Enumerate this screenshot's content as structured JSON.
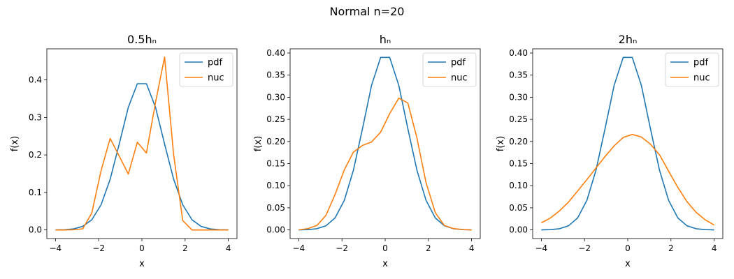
{
  "figure": {
    "title": "Normal n=20"
  },
  "chart_data": [
    {
      "type": "line",
      "title": "0.5hₙ",
      "xlabel": "x",
      "ylabel": "f(x)",
      "xlim": [
        -4.4,
        4.4
      ],
      "ylim": [
        -0.023,
        0.483
      ],
      "xticks": [
        -4,
        -2,
        0,
        2,
        4
      ],
      "yticks": [
        0.0,
        0.1,
        0.2,
        0.3,
        0.4
      ],
      "ytick_labels": [
        "0.0",
        "0.1",
        "0.2",
        "0.3",
        "0.4"
      ],
      "legend_position": "upper right",
      "x": [
        -4.0,
        -3.58,
        -3.16,
        -2.74,
        -2.32,
        -1.89,
        -1.47,
        -1.05,
        -0.63,
        -0.21,
        0.21,
        0.63,
        1.05,
        1.47,
        1.89,
        2.32,
        2.74,
        3.16,
        3.58,
        4.0
      ],
      "series": [
        {
          "name": "pdf",
          "color": "#1f77b4",
          "values": [
            0.0001,
            0.0007,
            0.0027,
            0.0094,
            0.027,
            0.067,
            0.135,
            0.229,
            0.327,
            0.39,
            0.39,
            0.327,
            0.229,
            0.135,
            0.067,
            0.027,
            0.0094,
            0.0027,
            0.0007,
            0.0001
          ]
        },
        {
          "name": "nuc",
          "color": "#ff7f0e",
          "values": [
            0.0,
            0.0,
            0.0005,
            0.003,
            0.045,
            0.158,
            0.244,
            0.197,
            0.149,
            0.234,
            0.205,
            0.34,
            0.461,
            0.2,
            0.025,
            0.0,
            0.0,
            0.0,
            0.0,
            0.0
          ]
        }
      ]
    },
    {
      "type": "line",
      "title": "hₙ",
      "xlabel": "x",
      "ylabel": "f(x)",
      "xlim": [
        -4.4,
        4.4
      ],
      "ylim": [
        -0.0195,
        0.4095
      ],
      "xticks": [
        -4,
        -2,
        0,
        2,
        4
      ],
      "yticks": [
        0.0,
        0.05,
        0.1,
        0.15,
        0.2,
        0.25,
        0.3,
        0.35,
        0.4
      ],
      "ytick_labels": [
        "0.00",
        "0.05",
        "0.10",
        "0.15",
        "0.20",
        "0.25",
        "0.30",
        "0.35",
        "0.40"
      ],
      "legend_position": "upper right",
      "x": [
        -4.0,
        -3.58,
        -3.16,
        -2.74,
        -2.32,
        -1.89,
        -1.47,
        -1.05,
        -0.63,
        -0.21,
        0.21,
        0.63,
        1.05,
        1.47,
        1.89,
        2.32,
        2.74,
        3.16,
        3.58,
        4.0
      ],
      "series": [
        {
          "name": "pdf",
          "color": "#1f77b4",
          "values": [
            0.0001,
            0.0007,
            0.0027,
            0.0094,
            0.027,
            0.067,
            0.135,
            0.229,
            0.327,
            0.39,
            0.39,
            0.327,
            0.229,
            0.135,
            0.067,
            0.027,
            0.0094,
            0.0027,
            0.0007,
            0.0001
          ]
        },
        {
          "name": "nuc",
          "color": "#ff7f0e",
          "values": [
            0.0,
            0.003,
            0.01,
            0.033,
            0.08,
            0.136,
            0.176,
            0.191,
            0.199,
            0.221,
            0.263,
            0.298,
            0.287,
            0.208,
            0.107,
            0.039,
            0.01,
            0.003,
            0.001,
            0.0
          ]
        }
      ]
    },
    {
      "type": "line",
      "title": "2hₙ",
      "xlabel": "x",
      "ylabel": "f(x)",
      "xlim": [
        -4.4,
        4.4
      ],
      "ylim": [
        -0.0195,
        0.4095
      ],
      "xticks": [
        -4,
        -2,
        0,
        2,
        4
      ],
      "yticks": [
        0.0,
        0.05,
        0.1,
        0.15,
        0.2,
        0.25,
        0.3,
        0.35,
        0.4
      ],
      "ytick_labels": [
        "0.00",
        "0.05",
        "0.10",
        "0.15",
        "0.20",
        "0.25",
        "0.30",
        "0.35",
        "0.40"
      ],
      "legend_position": "upper right",
      "x": [
        -4.0,
        -3.58,
        -3.16,
        -2.74,
        -2.32,
        -1.89,
        -1.47,
        -1.05,
        -0.63,
        -0.21,
        0.21,
        0.63,
        1.05,
        1.47,
        1.89,
        2.32,
        2.74,
        3.16,
        3.58,
        4.0
      ],
      "series": [
        {
          "name": "pdf",
          "color": "#1f77b4",
          "values": [
            0.0001,
            0.0007,
            0.0027,
            0.0094,
            0.027,
            0.067,
            0.135,
            0.229,
            0.327,
            0.39,
            0.39,
            0.327,
            0.229,
            0.135,
            0.067,
            0.027,
            0.0094,
            0.0027,
            0.0007,
            0.0001
          ]
        },
        {
          "name": "nuc",
          "color": "#ff7f0e",
          "values": [
            0.016,
            0.027,
            0.043,
            0.063,
            0.088,
            0.114,
            0.14,
            0.166,
            0.19,
            0.209,
            0.216,
            0.21,
            0.194,
            0.17,
            0.133,
            0.096,
            0.064,
            0.04,
            0.023,
            0.011
          ]
        }
      ]
    }
  ]
}
